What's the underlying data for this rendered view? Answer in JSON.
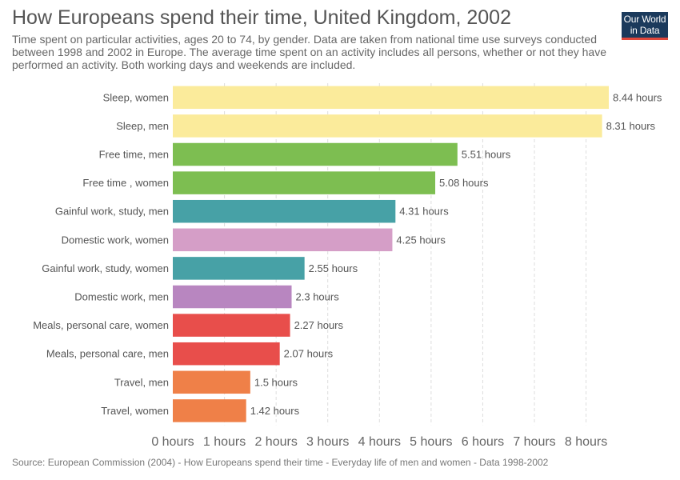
{
  "header": {
    "title": "How Europeans spend their time, United Kingdom, 2002",
    "subtitle": "Time spent on particular activities, ages 20 to 74, by gender. Data are taken from national time use surveys conducted between 1998 and 2002 in Europe. The average time spent on an activity includes all persons, whether or not they have performed an activity. Both working days and weekends are included."
  },
  "logo": {
    "line1": "Our World",
    "line2": "in Data"
  },
  "footer": {
    "source": "Source: European Commission (2004) - How Europeans spend their time - Everyday life of men and women - Data 1998-2002"
  },
  "chart_data": {
    "type": "bar",
    "orientation": "horizontal",
    "title": "How Europeans spend their time, United Kingdom, 2002",
    "unit": "hours",
    "categories": [
      "Sleep, women",
      "Sleep, men",
      "Free time, men",
      "Free time , women",
      "Gainful work, study, men",
      "Domestic work, women",
      "Gainful work, study, women",
      "Domestic work, men",
      "Meals, personal care, women",
      "Meals, personal care, men",
      "Travel, men",
      "Travel, women"
    ],
    "values": [
      8.44,
      8.31,
      5.51,
      5.08,
      4.31,
      4.25,
      2.55,
      2.3,
      2.27,
      2.07,
      1.5,
      1.42
    ],
    "data_labels": [
      "8.44 hours",
      "8.31 hours",
      "5.51 hours",
      "5.08 hours",
      "4.31 hours",
      "4.25 hours",
      "2.55 hours",
      "2.3 hours",
      "2.27 hours",
      "2.07 hours",
      "1.5 hours",
      "1.42 hours"
    ],
    "colors": [
      "#fbeb9b",
      "#fbeb9b",
      "#7dbe51",
      "#7dbe51",
      "#47a1a6",
      "#d59ec7",
      "#47a1a6",
      "#b886c0",
      "#e84e4b",
      "#e84e4b",
      "#ef8048",
      "#ef8048"
    ],
    "xlim": [
      0,
      8.44
    ],
    "x_ticks": [
      0,
      1,
      2,
      3,
      4,
      5,
      6,
      7,
      8
    ],
    "x_tick_labels": [
      "0 hours",
      "1 hours",
      "2 hours",
      "3 hours",
      "4 hours",
      "5 hours",
      "6 hours",
      "7 hours",
      "8 hours"
    ],
    "grid": "vertical dashed"
  }
}
